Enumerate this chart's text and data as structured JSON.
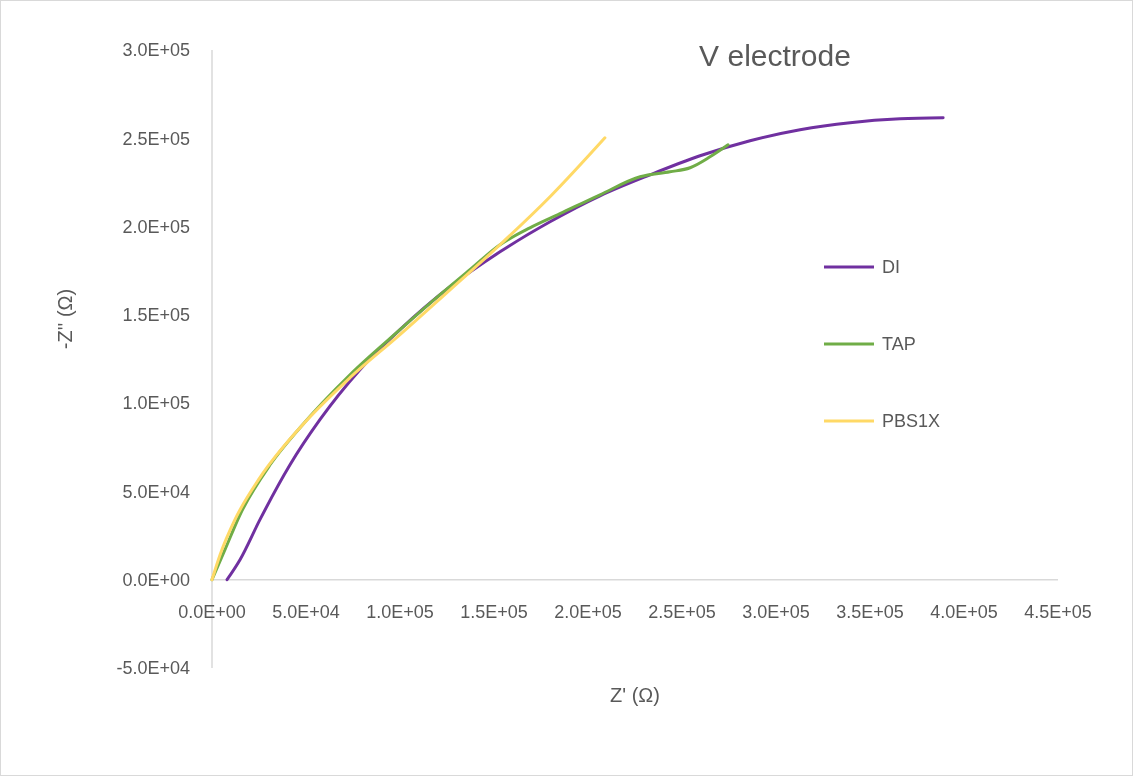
{
  "chart_data": {
    "type": "line",
    "title": "V electrode",
    "xlabel": "Z' (Ω)",
    "ylabel": "-Z'' (Ω)",
    "xlim": [
      0,
      450000
    ],
    "ylim": [
      -50000,
      300000
    ],
    "xticks": [
      {
        "value": 0,
        "label": "0.0E+00"
      },
      {
        "value": 50000,
        "label": "5.0E+04"
      },
      {
        "value": 100000,
        "label": "1.0E+05"
      },
      {
        "value": 150000,
        "label": "1.5E+05"
      },
      {
        "value": 200000,
        "label": "2.0E+05"
      },
      {
        "value": 250000,
        "label": "2.5E+05"
      },
      {
        "value": 300000,
        "label": "3.0E+05"
      },
      {
        "value": 350000,
        "label": "3.5E+05"
      },
      {
        "value": 400000,
        "label": "4.0E+05"
      },
      {
        "value": 450000,
        "label": "4.5E+05"
      }
    ],
    "yticks": [
      {
        "value": -50000,
        "label": "-5.0E+04"
      },
      {
        "value": 0,
        "label": "0.0E+00"
      },
      {
        "value": 50000,
        "label": "5.0E+04"
      },
      {
        "value": 100000,
        "label": "1.0E+05"
      },
      {
        "value": 150000,
        "label": "1.5E+05"
      },
      {
        "value": 200000,
        "label": "2.0E+05"
      },
      {
        "value": 250000,
        "label": "2.5E+05"
      },
      {
        "value": 300000,
        "label": "3.0E+05"
      }
    ],
    "grid": false,
    "legend": "right",
    "marker": "none",
    "line_style": "solid",
    "series": [
      {
        "name": "DI",
        "color": "#7030a0",
        "x": [
          8000,
          14900,
          25500,
          41500,
          57400,
          78700,
          100000,
          126600,
          153200,
          179800,
          206400,
          233000,
          259600,
          286200,
          312800,
          339400,
          366000,
          388900
        ],
        "values": [
          0,
          11300,
          34000,
          65100,
          90600,
          118900,
          141600,
          165900,
          185700,
          202700,
          217400,
          229300,
          240100,
          248600,
          254800,
          258800,
          261000,
          261600
        ]
      },
      {
        "name": "TAP",
        "color": "#70ad47",
        "x": [
          0,
          6900,
          14900,
          30900,
          46800,
          73400,
          100000,
          121300,
          137200,
          153200,
          169100,
          185100,
          206400,
          227700,
          243600,
          254300,
          264900,
          274500
        ],
        "values": [
          0,
          17000,
          36800,
          65100,
          86100,
          116100,
          141600,
          161400,
          175600,
          189700,
          199300,
          207300,
          218000,
          228200,
          231000,
          233300,
          239500,
          246300
        ]
      },
      {
        "name": "PBS1X",
        "color": "#ffd966",
        "x": [
          0,
          4300,
          12200,
          25500,
          46800,
          73400,
          100000,
          126600,
          153200,
          179800,
          209000
        ],
        "values": [
          0,
          14200,
          34000,
          57800,
          86100,
          114400,
          138800,
          164200,
          189700,
          216900,
          250300
        ]
      }
    ]
  }
}
